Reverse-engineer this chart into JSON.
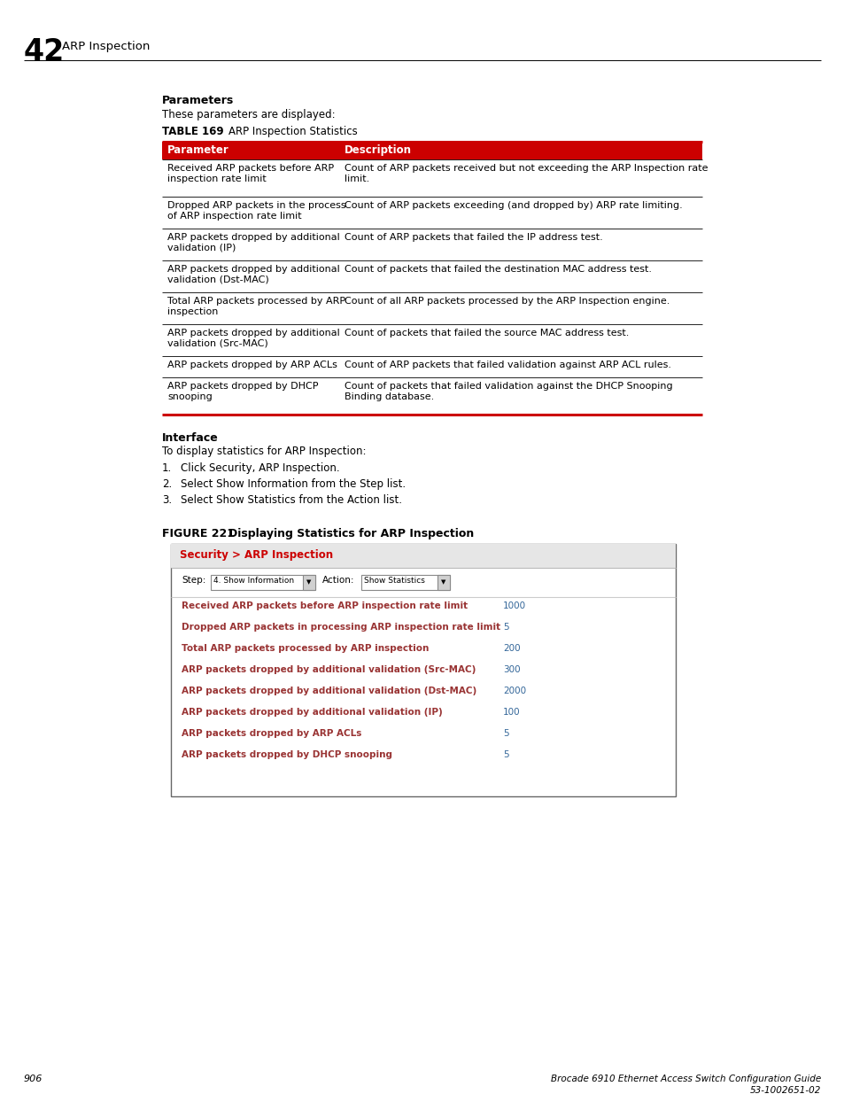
{
  "page_num": "906",
  "footer_right_line1": "Brocade 6910 Ethernet Access Switch Configuration Guide",
  "footer_right_line2": "53-1002651-02",
  "chapter_num": "42",
  "chapter_title": "ARP Inspection",
  "section_params_title": "Parameters",
  "section_params_text": "These parameters are displayed:",
  "table_label": "TABLE 169",
  "table_title": "ARP Inspection Statistics",
  "table_header": [
    "Parameter",
    "Description"
  ],
  "table_rows_col1": [
    "Received ARP packets before ARP\ninspection rate limit",
    "Dropped ARP packets in the process\nof ARP inspection rate limit",
    "ARP packets dropped by additional\nvalidation (IP)",
    "ARP packets dropped by additional\nvalidation (Dst-MAC)",
    "Total ARP packets processed by ARP\ninspection",
    "ARP packets dropped by additional\nvalidation (Src-MAC)",
    "ARP packets dropped by ARP ACLs",
    "ARP packets dropped by DHCP\nsnooping"
  ],
  "table_rows_col2": [
    "Count of ARP packets received but not exceeding the ARP Inspection rate\nlimit.",
    "Count of ARP packets exceeding (and dropped by) ARP rate limiting.",
    "Count of ARP packets that failed the IP address test.",
    "Count of packets that failed the destination MAC address test.",
    "Count of all ARP packets processed by the ARP Inspection engine.",
    "Count of packets that failed the source MAC address test.",
    "Count of ARP packets that failed validation against ARP ACL rules.",
    "Count of packets that failed validation against the DHCP Snooping\nBinding database."
  ],
  "table_row_heights": [
    42,
    36,
    36,
    36,
    36,
    36,
    24,
    42
  ],
  "interface_title": "Interface",
  "interface_text": "To display statistics for ARP Inspection:",
  "steps": [
    "Click Security, ARP Inspection.",
    "Select Show Information from the Step list.",
    "Select Show Statistics from the Action list."
  ],
  "figure_label": "FIGURE 221",
  "figure_title": "Displaying Statistics for ARP Inspection",
  "ui_title": "Security > ARP Inspection",
  "ui_step_label": "Step:",
  "ui_step_value": "4. Show Information",
  "ui_action_label": "Action:",
  "ui_action_value": "Show Statistics",
  "ui_rows_label": [
    "Received ARP packets before ARP inspection rate limit",
    "Dropped ARP packets in processing ARP inspection rate limit",
    "Total ARP packets processed by ARP inspection",
    "ARP packets dropped by additional validation (Src-MAC)",
    "ARP packets dropped by additional validation (Dst-MAC)",
    "ARP packets dropped by additional validation (IP)",
    "ARP packets dropped by ARP ACLs",
    "ARP packets dropped by DHCP snooping"
  ],
  "ui_rows_value": [
    "1000",
    "5",
    "200",
    "300",
    "2000",
    "100",
    "5",
    "5"
  ],
  "red_color": "#cc0000",
  "header_bg": "#cc0000",
  "table_border_color": "#cc0000",
  "ui_title_color": "#cc0000",
  "ui_row_label_color": "#993333",
  "ui_row_value_color": "#336699",
  "bg_color": "#ffffff"
}
